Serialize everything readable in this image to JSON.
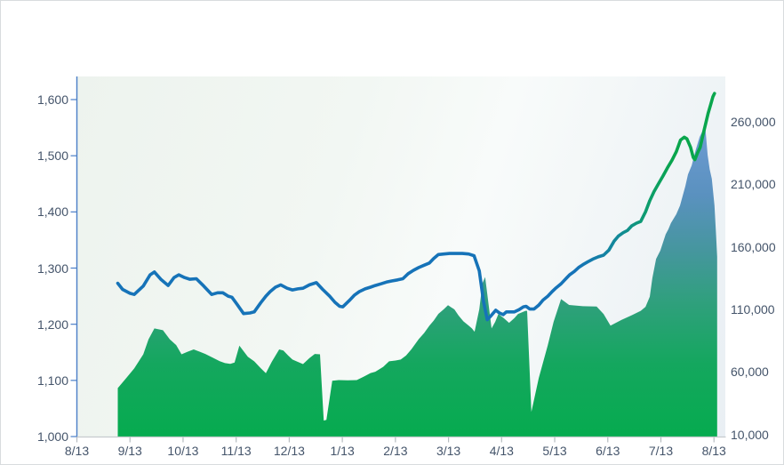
{
  "chart_data": {
    "type": "combo-area-line",
    "title": "",
    "legend": "none",
    "grid": "off",
    "x_axis": {
      "tick_labels": [
        "8/13",
        "9/13",
        "10/13",
        "11/13",
        "12/13",
        "1/13",
        "2/13",
        "3/13",
        "4/13",
        "5/13",
        "6/13",
        "7/13",
        "8/13"
      ],
      "note": "monthly ticks, data sampled ~daily from x=0.77 to x=12.06 month-units"
    },
    "left_axis": {
      "min": 1000,
      "max": 1600,
      "step": 100,
      "ticks": [
        {
          "label": "1,600",
          "value": 1600
        },
        {
          "label": "1,500",
          "value": 1500
        },
        {
          "label": "1,400",
          "value": 1400
        },
        {
          "label": "1,300",
          "value": 1300
        },
        {
          "label": "1,200",
          "value": 1200
        },
        {
          "label": "1,100",
          "value": 1100
        },
        {
          "label": "1,000",
          "value": 1000
        }
      ]
    },
    "right_axis": {
      "min": 10000,
      "max": 260000,
      "step": 50000,
      "ticks": [
        {
          "label": "260,000",
          "value": 260000
        },
        {
          "label": "210,000",
          "value": 210000
        },
        {
          "label": "160,000",
          "value": 160000
        },
        {
          "label": "110,000",
          "value": 110000
        },
        {
          "label": "60,000",
          "value": 60000
        },
        {
          "label": "10,000",
          "value": 10000
        }
      ]
    },
    "series": [
      {
        "name": "volume-area",
        "type": "area",
        "axis": "right",
        "gradient_low_to_high": [
          "#06ab4f",
          "#2fa07c",
          "#46969f",
          "#5a91bf",
          "#7fa8dc"
        ],
        "points": [
          [
            0.77,
            47000
          ],
          [
            0.93,
            55000
          ],
          [
            1.08,
            62700
          ],
          [
            1.25,
            74000
          ],
          [
            1.35,
            86000
          ],
          [
            1.46,
            94700
          ],
          [
            1.62,
            93300
          ],
          [
            1.75,
            86000
          ],
          [
            1.87,
            81400
          ],
          [
            1.97,
            74000
          ],
          [
            2.08,
            76000
          ],
          [
            2.2,
            77900
          ],
          [
            2.32,
            76000
          ],
          [
            2.42,
            74300
          ],
          [
            2.55,
            71500
          ],
          [
            2.69,
            68500
          ],
          [
            2.79,
            67000
          ],
          [
            2.89,
            66300
          ],
          [
            2.97,
            67500
          ],
          [
            3.06,
            81000
          ],
          [
            3.22,
            72000
          ],
          [
            3.34,
            68400
          ],
          [
            3.46,
            63000
          ],
          [
            3.56,
            58900
          ],
          [
            3.67,
            68000
          ],
          [
            3.81,
            77900
          ],
          [
            3.89,
            77000
          ],
          [
            3.98,
            73000
          ],
          [
            4.06,
            69800
          ],
          [
            4.16,
            68000
          ],
          [
            4.26,
            66200
          ],
          [
            4.38,
            71000
          ],
          [
            4.48,
            74300
          ],
          [
            4.58,
            74000
          ],
          [
            4.65,
            21000
          ],
          [
            4.7,
            21500
          ],
          [
            4.81,
            52900
          ],
          [
            4.93,
            53400
          ],
          [
            5.1,
            53200
          ],
          [
            5.27,
            53400
          ],
          [
            5.4,
            56000
          ],
          [
            5.53,
            59000
          ],
          [
            5.62,
            60100
          ],
          [
            5.77,
            64000
          ],
          [
            5.88,
            68400
          ],
          [
            6.0,
            69000
          ],
          [
            6.1,
            69800
          ],
          [
            6.2,
            73000
          ],
          [
            6.3,
            78000
          ],
          [
            6.44,
            86200
          ],
          [
            6.54,
            91000
          ],
          [
            6.64,
            96900
          ],
          [
            6.72,
            101000
          ],
          [
            6.81,
            106400
          ],
          [
            6.91,
            110000
          ],
          [
            6.99,
            113300
          ],
          [
            7.11,
            109900
          ],
          [
            7.19,
            105000
          ],
          [
            7.28,
            100400
          ],
          [
            7.38,
            97000
          ],
          [
            7.44,
            94700
          ],
          [
            7.49,
            92100
          ],
          [
            7.58,
            110000
          ],
          [
            7.64,
            131000
          ],
          [
            7.69,
            135800
          ],
          [
            7.76,
            112000
          ],
          [
            7.81,
            94700
          ],
          [
            7.88,
            100000
          ],
          [
            7.94,
            106300
          ],
          [
            8.04,
            103000
          ],
          [
            8.14,
            99200
          ],
          [
            8.24,
            103000
          ],
          [
            8.31,
            106300
          ],
          [
            8.45,
            108800
          ],
          [
            8.48,
            108800
          ],
          [
            8.56,
            28000
          ],
          [
            8.7,
            55000
          ],
          [
            8.87,
            81400
          ],
          [
            8.98,
            100000
          ],
          [
            9.12,
            118200
          ],
          [
            9.27,
            113450
          ],
          [
            9.53,
            112500
          ],
          [
            9.79,
            112300
          ],
          [
            9.92,
            106300
          ],
          [
            10.05,
            96900
          ],
          [
            10.26,
            101600
          ],
          [
            10.45,
            105200
          ],
          [
            10.62,
            108800
          ],
          [
            10.71,
            112000
          ],
          [
            10.79,
            120000
          ],
          [
            10.84,
            135000
          ],
          [
            10.91,
            150300
          ],
          [
            10.99,
            157000
          ],
          [
            11.09,
            170000
          ],
          [
            11.14,
            174000
          ],
          [
            11.19,
            179000
          ],
          [
            11.29,
            186000
          ],
          [
            11.36,
            193000
          ],
          [
            11.46,
            208500
          ],
          [
            11.51,
            218000
          ],
          [
            11.58,
            225000
          ],
          [
            11.66,
            238000
          ],
          [
            11.73,
            248000
          ],
          [
            11.79,
            253000
          ],
          [
            11.84,
            253600
          ],
          [
            11.88,
            233400
          ],
          [
            11.92,
            222000
          ],
          [
            11.96,
            214400
          ],
          [
            12.01,
            193000
          ],
          [
            12.04,
            169300
          ],
          [
            12.06,
            152000
          ]
        ]
      },
      {
        "name": "price-line",
        "type": "line",
        "axis": "left",
        "gradient_left_to_right": [
          "#1673b8",
          "#128a98",
          "#0d9d6d",
          "#09a54c"
        ],
        "points": [
          [
            0.77,
            1273
          ],
          [
            0.86,
            1262
          ],
          [
            1.0,
            1255
          ],
          [
            1.08,
            1253
          ],
          [
            1.25,
            1268
          ],
          [
            1.38,
            1288
          ],
          [
            1.46,
            1293
          ],
          [
            1.58,
            1280
          ],
          [
            1.72,
            1269
          ],
          [
            1.83,
            1283
          ],
          [
            1.92,
            1288
          ],
          [
            2.03,
            1283
          ],
          [
            2.13,
            1280
          ],
          [
            2.25,
            1281
          ],
          [
            2.39,
            1268
          ],
          [
            2.54,
            1253
          ],
          [
            2.65,
            1256
          ],
          [
            2.75,
            1256
          ],
          [
            2.85,
            1250
          ],
          [
            2.92,
            1248
          ],
          [
            3.02,
            1235
          ],
          [
            3.14,
            1219
          ],
          [
            3.26,
            1220
          ],
          [
            3.34,
            1222
          ],
          [
            3.46,
            1238
          ],
          [
            3.56,
            1250
          ],
          [
            3.64,
            1258
          ],
          [
            3.74,
            1266
          ],
          [
            3.84,
            1270
          ],
          [
            3.96,
            1264
          ],
          [
            4.06,
            1261
          ],
          [
            4.16,
            1263
          ],
          [
            4.26,
            1264
          ],
          [
            4.38,
            1270
          ],
          [
            4.51,
            1274
          ],
          [
            4.63,
            1262
          ],
          [
            4.76,
            1250
          ],
          [
            4.86,
            1239
          ],
          [
            4.95,
            1232
          ],
          [
            5.01,
            1231
          ],
          [
            5.13,
            1242
          ],
          [
            5.23,
            1252
          ],
          [
            5.32,
            1258
          ],
          [
            5.43,
            1263
          ],
          [
            5.53,
            1266
          ],
          [
            5.62,
            1269
          ],
          [
            5.73,
            1272
          ],
          [
            5.83,
            1275
          ],
          [
            5.93,
            1277
          ],
          [
            6.04,
            1279
          ],
          [
            6.14,
            1281
          ],
          [
            6.24,
            1290
          ],
          [
            6.34,
            1296
          ],
          [
            6.44,
            1301
          ],
          [
            6.54,
            1305
          ],
          [
            6.64,
            1309
          ],
          [
            6.72,
            1317
          ],
          [
            6.81,
            1324
          ],
          [
            6.91,
            1325
          ],
          [
            7.02,
            1326
          ],
          [
            7.14,
            1326
          ],
          [
            7.26,
            1326
          ],
          [
            7.38,
            1325
          ],
          [
            7.48,
            1322
          ],
          [
            7.58,
            1295
          ],
          [
            7.66,
            1240
          ],
          [
            7.73,
            1208
          ],
          [
            7.79,
            1214
          ],
          [
            7.89,
            1225
          ],
          [
            7.96,
            1220
          ],
          [
            8.03,
            1217
          ],
          [
            8.09,
            1222
          ],
          [
            8.16,
            1222
          ],
          [
            8.24,
            1222
          ],
          [
            8.33,
            1226
          ],
          [
            8.41,
            1231
          ],
          [
            8.46,
            1232
          ],
          [
            8.53,
            1227
          ],
          [
            8.61,
            1227
          ],
          [
            8.7,
            1234
          ],
          [
            8.78,
            1243
          ],
          [
            8.87,
            1250
          ],
          [
            8.95,
            1258
          ],
          [
            9.03,
            1265
          ],
          [
            9.12,
            1272
          ],
          [
            9.2,
            1280
          ],
          [
            9.28,
            1288
          ],
          [
            9.37,
            1294
          ],
          [
            9.45,
            1301
          ],
          [
            9.53,
            1306
          ],
          [
            9.62,
            1311
          ],
          [
            9.72,
            1316
          ],
          [
            9.82,
            1320
          ],
          [
            9.92,
            1323
          ],
          [
            10.02,
            1332
          ],
          [
            10.12,
            1348
          ],
          [
            10.2,
            1357
          ],
          [
            10.29,
            1363
          ],
          [
            10.37,
            1367
          ],
          [
            10.45,
            1375
          ],
          [
            10.54,
            1380
          ],
          [
            10.62,
            1383
          ],
          [
            10.71,
            1400
          ],
          [
            10.79,
            1420
          ],
          [
            10.87,
            1436
          ],
          [
            10.96,
            1451
          ],
          [
            11.04,
            1464
          ],
          [
            11.12,
            1478
          ],
          [
            11.21,
            1492
          ],
          [
            11.29,
            1507
          ],
          [
            11.37,
            1528
          ],
          [
            11.44,
            1533
          ],
          [
            11.49,
            1530
          ],
          [
            11.56,
            1515
          ],
          [
            11.61,
            1497
          ],
          [
            11.64,
            1493
          ],
          [
            11.69,
            1505
          ],
          [
            11.74,
            1515
          ],
          [
            11.79,
            1536
          ],
          [
            11.84,
            1556
          ],
          [
            11.89,
            1576
          ],
          [
            11.95,
            1595
          ],
          [
            11.98,
            1605
          ],
          [
            12.01,
            1611
          ]
        ]
      }
    ]
  },
  "colors": {
    "line_blue": "#1673b8",
    "line_green": "#09a54c",
    "area_green_bottom": "#06ab4f",
    "area_blue_top": "#7fa8dc",
    "axis_label_text": "#44546a",
    "left_axis_line": "#4a7ec7",
    "bottom_axis_line": "#c6cbce",
    "plot_bg_topleft": "#edf3ee",
    "plot_bg_right": "#e9eff4",
    "canvas_border": "#d8dcde"
  }
}
